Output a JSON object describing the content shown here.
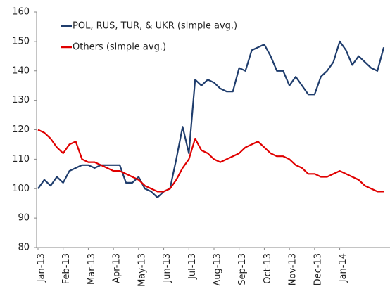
{
  "chart_data": {
    "type": "line",
    "categories": [
      "Jan-13",
      null,
      null,
      null,
      "Feb-13",
      null,
      null,
      null,
      "Mar-13",
      null,
      null,
      null,
      "Apr-13",
      null,
      null,
      null,
      "May-13",
      null,
      null,
      null,
      "Jun-13",
      null,
      null,
      null,
      "Jul-13",
      null,
      null,
      null,
      "Aug-13",
      null,
      null,
      null,
      "Sep-13",
      null,
      null,
      null,
      "Oct-13",
      null,
      null,
      null,
      "Nov-13",
      null,
      null,
      null,
      "Dec-13",
      null,
      null,
      null,
      "Jan-14",
      null,
      null,
      null,
      null,
      null,
      null,
      null
    ],
    "series": [
      {
        "name": "POL, RUS, TUR, & UKR (simple avg.)",
        "color": "#1f3d6d",
        "values": [
          100,
          103,
          101,
          104,
          102,
          106,
          107,
          108,
          108,
          107,
          108,
          108,
          108,
          108,
          102,
          102,
          104,
          100,
          99,
          97,
          99,
          100,
          110,
          121,
          112,
          137,
          135,
          137,
          136,
          134,
          133,
          133,
          141,
          140,
          147,
          148,
          149,
          145,
          140,
          140,
          135,
          138,
          135,
          132,
          132,
          138,
          140,
          143,
          150,
          147,
          142,
          145,
          143,
          141,
          140,
          148
        ]
      },
      {
        "name": "Others (simple avg.)",
        "color": "#e00000",
        "values": [
          120,
          119,
          117,
          114,
          112,
          115,
          116,
          110,
          109,
          109,
          108,
          107,
          106,
          106,
          105,
          104,
          103,
          101,
          100,
          99,
          99,
          100,
          103,
          107,
          110,
          117,
          113,
          112,
          110,
          109,
          110,
          111,
          112,
          114,
          115,
          116,
          114,
          112,
          111,
          111,
          110,
          108,
          107,
          105,
          105,
          104,
          104,
          105,
          106,
          105,
          104,
          103,
          101,
          100,
          99,
          99
        ]
      }
    ],
    "ylim": [
      80,
      160
    ],
    "yticks": [
      80,
      90,
      100,
      110,
      120,
      130,
      140,
      150,
      160
    ],
    "grid": false,
    "legend": "top-left"
  }
}
